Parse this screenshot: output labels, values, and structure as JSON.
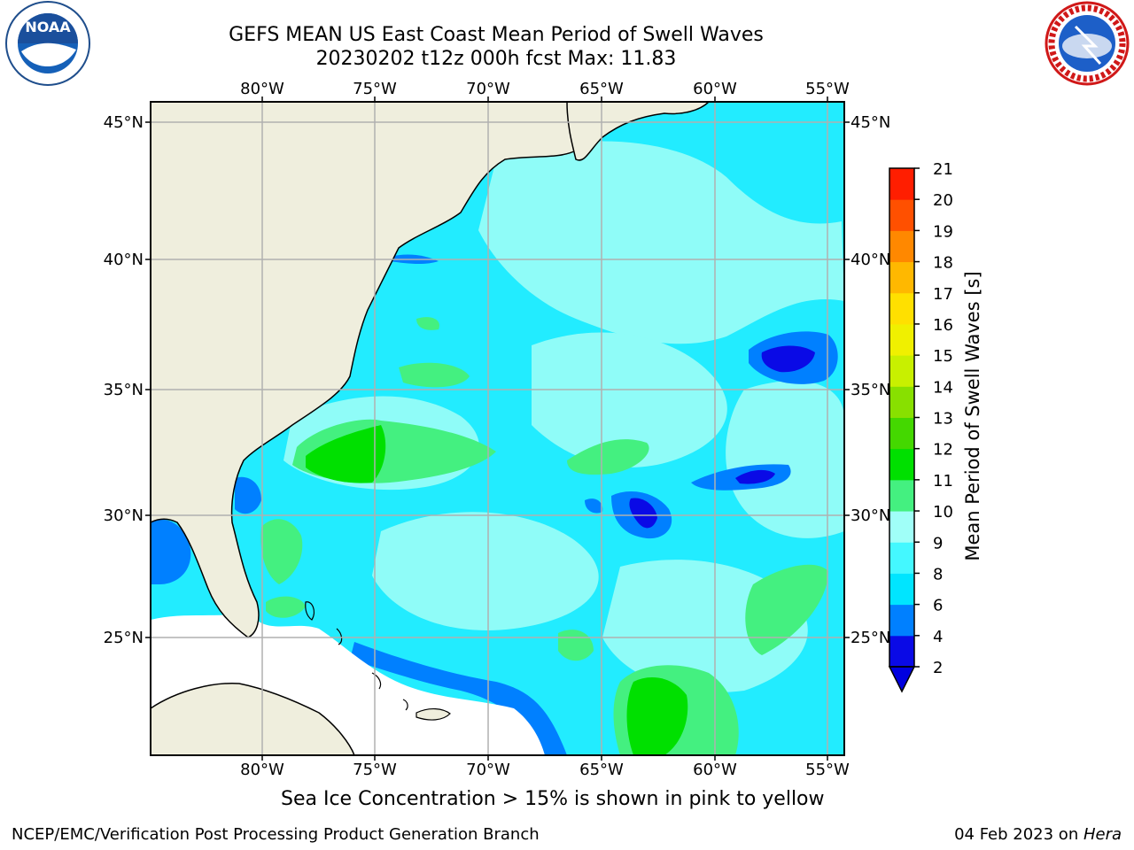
{
  "header": {
    "title_line1": "GEFS MEAN US East Coast Mean Period of Swell Waves",
    "title_line2": "20230202 t12z 000h fcst   Max: 11.83"
  },
  "logos": {
    "left": {
      "icon": "noaa-logo-icon",
      "text": "NOAA"
    },
    "right": {
      "icon": "nws-logo-icon",
      "text": "NATIONAL WEATHER SERVICE"
    }
  },
  "map": {
    "lon_labels": [
      "80°W",
      "75°W",
      "70°W",
      "65°W",
      "60°W",
      "55°W"
    ],
    "lat_labels": [
      "45°N",
      "40°N",
      "35°N",
      "30°N",
      "25°N"
    ],
    "colors": {
      "land": "#efeedd",
      "missing": "#ffffff",
      "grid": "#b0b0b0"
    }
  },
  "colorbar": {
    "label": "Mean Period of Swell Waves [s]",
    "ticks": [
      "2",
      "4",
      "6",
      "8",
      "9",
      "10",
      "11",
      "12",
      "13",
      "14",
      "15",
      "16",
      "17",
      "18",
      "19",
      "20",
      "21"
    ],
    "colors": [
      "#0a0ae6",
      "#0080ff",
      "#00e5ff",
      "#44f8ff",
      "#a0fff8",
      "#44f080",
      "#00e000",
      "#44d800",
      "#88e000",
      "#c8f000",
      "#f0f000",
      "#ffe000",
      "#ffb800",
      "#ff8800",
      "#ff5000",
      "#ff1e00"
    ],
    "extend_color": "#0000e0"
  },
  "footer": {
    "ice_note": "Sea Ice Concentration > 15% is shown in pink to yellow",
    "left": "NCEP/EMC/Verification Post Processing Product Generation Branch",
    "right_date": "04 Feb 2023 on ",
    "right_host": "Hera"
  }
}
